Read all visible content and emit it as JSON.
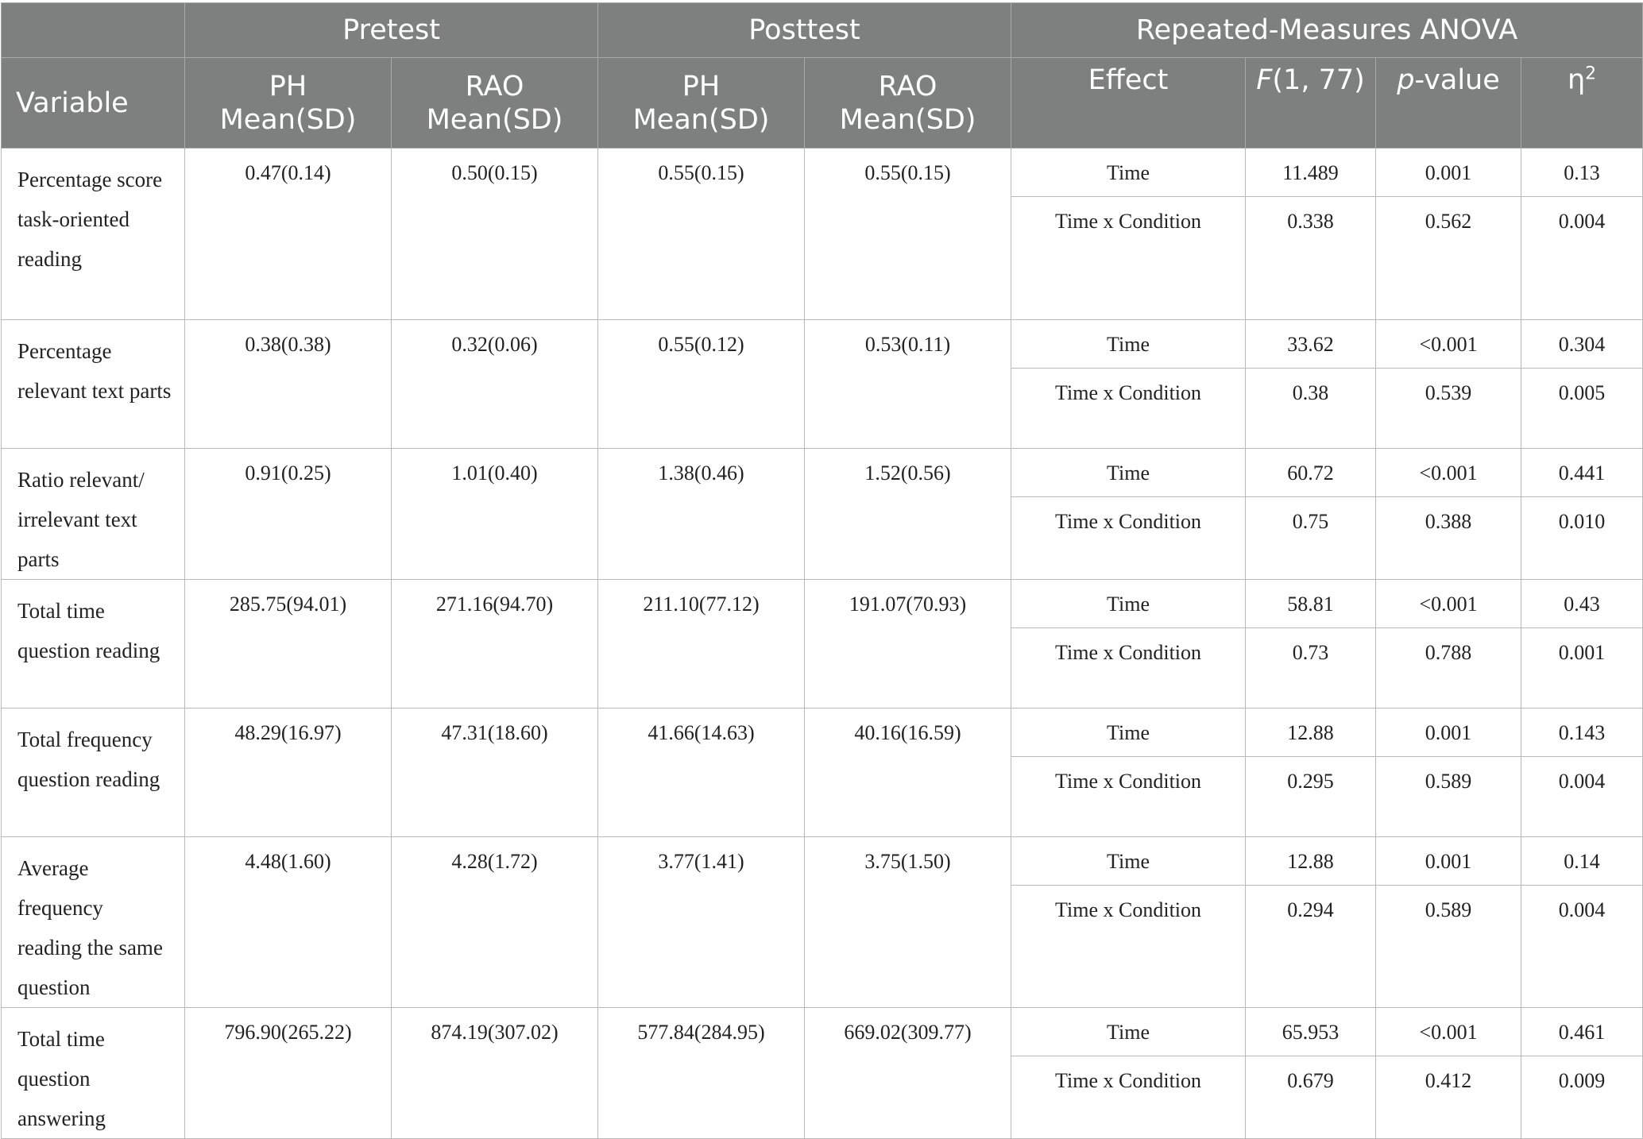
{
  "header": {
    "group": {
      "pretest": "Pretest",
      "posttest": "Posttest",
      "anova": "Repeated-Measures ANOVA"
    },
    "sub": {
      "variable": "Variable",
      "ph_l1": "PH",
      "ph_l2": "Mean(SD)",
      "rao_l1": "RAO",
      "rao_l2": "Mean(SD)",
      "effect": "Effect",
      "f_italic": "F",
      "f_rest": "(1, 77)",
      "p_italic": "p",
      "p_rest": "-value",
      "eta": "η",
      "eta_sup": "2"
    }
  },
  "rows": [
    {
      "variable": "Percentage score task-oriented reading",
      "pre_ph": "0.47(0.14)",
      "pre_rao": "0.50(0.15)",
      "post_ph": "0.55(0.15)",
      "post_rao": "0.55(0.15)",
      "effects": [
        {
          "effect": "Time",
          "f": "11.489",
          "p": "0.001",
          "eta": "0.13"
        },
        {
          "effect": "Time x Condition",
          "f": "0.338",
          "p": "0.562",
          "eta": "0.004"
        }
      ]
    },
    {
      "variable": "Percentage relevant text parts",
      "pre_ph": "0.38(0.38)",
      "pre_rao": "0.32(0.06)",
      "post_ph": "0.55(0.12)",
      "post_rao": "0.53(0.11)",
      "effects": [
        {
          "effect": "Time",
          "f": "33.62",
          "p": "<0.001",
          "eta": "0.304"
        },
        {
          "effect": "Time x Condition",
          "f": "0.38",
          "p": "0.539",
          "eta": "0.005"
        }
      ]
    },
    {
      "variable": "Ratio relevant/ irrelevant text parts",
      "pre_ph": "0.91(0.25)",
      "pre_rao": "1.01(0.40)",
      "post_ph": "1.38(0.46)",
      "post_rao": "1.52(0.56)",
      "effects": [
        {
          "effect": "Time",
          "f": "60.72",
          "p": "<0.001",
          "eta": "0.441"
        },
        {
          "effect": "Time x Condition",
          "f": "0.75",
          "p": "0.388",
          "eta": "0.010"
        }
      ]
    },
    {
      "variable": "Total time question reading",
      "pre_ph": "285.75(94.01)",
      "pre_rao": "271.16(94.70)",
      "post_ph": "211.10(77.12)",
      "post_rao": "191.07(70.93)",
      "effects": [
        {
          "effect": "Time",
          "f": "58.81",
          "p": "<0.001",
          "eta": "0.43"
        },
        {
          "effect": "Time x Condition",
          "f": "0.73",
          "p": "0.788",
          "eta": "0.001"
        }
      ]
    },
    {
      "variable": "Total frequency question reading",
      "pre_ph": "48.29(16.97)",
      "pre_rao": "47.31(18.60)",
      "post_ph": "41.66(14.63)",
      "post_rao": "40.16(16.59)",
      "effects": [
        {
          "effect": "Time",
          "f": "12.88",
          "p": "0.001",
          "eta": "0.143"
        },
        {
          "effect": "Time x Condition",
          "f": "0.295",
          "p": "0.589",
          "eta": "0.004"
        }
      ]
    },
    {
      "variable": "Average frequency reading the same question",
      "pre_ph": "4.48(1.60)",
      "pre_rao": "4.28(1.72)",
      "post_ph": "3.77(1.41)",
      "post_rao": "3.75(1.50)",
      "effects": [
        {
          "effect": "Time",
          "f": "12.88",
          "p": "0.001",
          "eta": "0.14"
        },
        {
          "effect": "Time x Condition",
          "f": "0.294",
          "p": "0.589",
          "eta": "0.004"
        }
      ]
    },
    {
      "variable": "Total time question answering",
      "pre_ph": "796.90(265.22)",
      "pre_rao": "874.19(307.02)",
      "post_ph": "577.84(284.95)",
      "post_rao": "669.02(309.77)",
      "effects": [
        {
          "effect": "Time",
          "f": "65.953",
          "p": "<0.001",
          "eta": "0.461"
        },
        {
          "effect": "Time x Condition",
          "f": "0.679",
          "p": "0.412",
          "eta": "0.009"
        }
      ]
    }
  ]
}
